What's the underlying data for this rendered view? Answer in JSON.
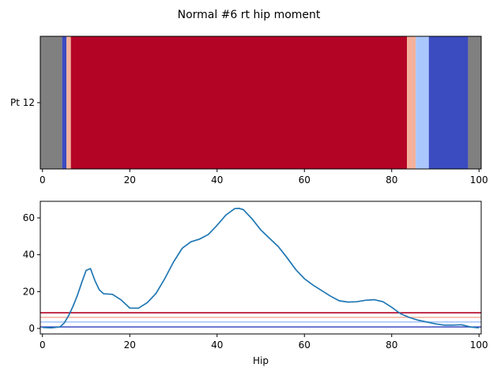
{
  "title": "Normal #6 rt hip moment",
  "chart_data": [
    {
      "type": "heatmap",
      "row_labels": [
        "Pt 12"
      ],
      "xlim": [
        -0.5,
        100.5
      ],
      "xticks": [
        0,
        20,
        40,
        60,
        80,
        100
      ],
      "segments": [
        {
          "start": -0.5,
          "end": 4.5,
          "color": "#808080"
        },
        {
          "start": 4.5,
          "end": 5.5,
          "color": "#3b4cc0"
        },
        {
          "start": 5.5,
          "end": 6.5,
          "color": "#f4b19b"
        },
        {
          "start": 6.5,
          "end": 83.5,
          "color": "#b40426"
        },
        {
          "start": 83.5,
          "end": 85.5,
          "color": "#f4b19b"
        },
        {
          "start": 85.5,
          "end": 88.5,
          "color": "#aac7fd"
        },
        {
          "start": 88.5,
          "end": 97.5,
          "color": "#3b4cc0"
        },
        {
          "start": 97.5,
          "end": 100.5,
          "color": "#808080"
        }
      ]
    },
    {
      "type": "line",
      "xlabel": "Hip",
      "ylabel": "",
      "xlim": [
        -0.5,
        100.5
      ],
      "ylim": [
        -3,
        69
      ],
      "xticks": [
        0,
        20,
        40,
        60,
        80,
        100
      ],
      "yticks": [
        0,
        20,
        40,
        60
      ],
      "series": [
        {
          "color": "#1f77b4",
          "x": [
            0,
            2,
            4,
            5,
            6,
            7,
            8,
            9,
            10,
            11,
            12,
            13,
            14,
            16,
            18,
            20,
            22,
            24,
            26,
            28,
            30,
            32,
            34,
            36,
            38,
            40,
            42,
            44,
            45,
            46,
            48,
            50,
            52,
            54,
            56,
            58,
            60,
            62,
            64,
            66,
            68,
            70,
            72,
            74,
            76,
            78,
            80,
            82,
            84,
            86,
            88,
            90,
            92,
            94,
            96,
            98,
            100
          ],
          "y": [
            0.5,
            0.3,
            0.8,
            3,
            7,
            12,
            18,
            25,
            31.5,
            32.5,
            26,
            21,
            18.8,
            18.5,
            15.5,
            11,
            11,
            14,
            19,
            27,
            36,
            43.5,
            47,
            48.5,
            51,
            56,
            61.5,
            65,
            65.2,
            64.5,
            59.5,
            53.5,
            49,
            44.5,
            38.5,
            32,
            27,
            23.5,
            20.5,
            17.5,
            15,
            14.3,
            14.5,
            15.3,
            15.6,
            14.5,
            11.5,
            8,
            6,
            4.5,
            3.5,
            2.5,
            1.8,
            1.8,
            2,
            0.8,
            0.3
          ]
        }
      ],
      "hlines": [
        {
          "y": 8.5,
          "color": "#b40426"
        },
        {
          "y": 6,
          "color": "#f4b19b"
        },
        {
          "y": 3.5,
          "color": "#aac7fd"
        },
        {
          "y": 0.8,
          "color": "#3b4cc0"
        }
      ]
    }
  ]
}
